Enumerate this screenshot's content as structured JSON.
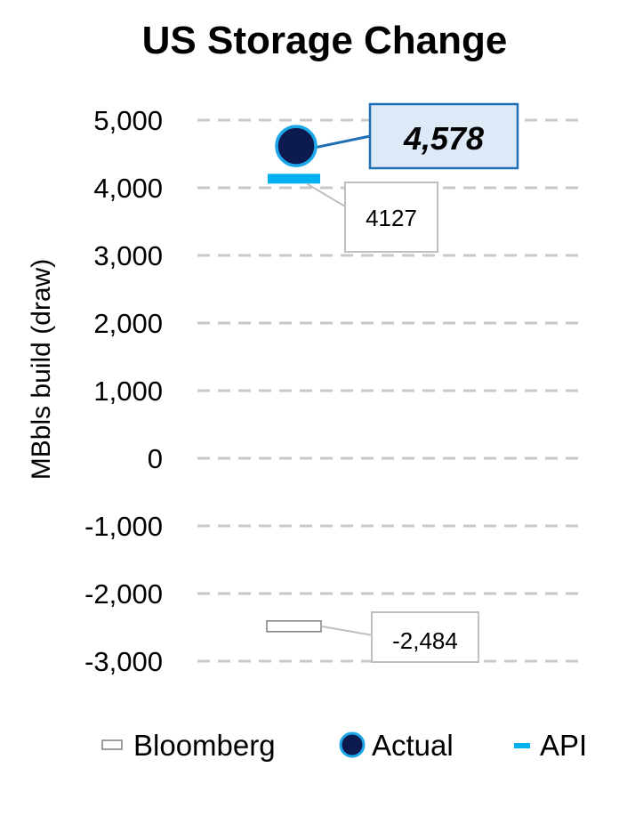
{
  "chart_data": {
    "type": "scatter",
    "title": "US Storage Change",
    "ylabel": "MBbls build (draw)",
    "xlabel": "",
    "ylim": [
      -3000,
      5000
    ],
    "yticks": [
      5000,
      4000,
      3000,
      2000,
      1000,
      0,
      -1000,
      -2000,
      -3000
    ],
    "ytick_labels": [
      "5,000",
      "4,000",
      "3,000",
      "2,000",
      "1,000",
      "0",
      "-1,000",
      "-2,000",
      "-3,000"
    ],
    "grid": "horizontal dashed",
    "legend_position": "bottom",
    "series": [
      {
        "name": "Bloomberg",
        "marker": "hollow-bar",
        "color": "#ffffff",
        "value": -2484,
        "label": "-2,484"
      },
      {
        "name": "Actual",
        "marker": "circle",
        "color": "#0d1a4f",
        "value": 4578,
        "label": "4,578"
      },
      {
        "name": "API",
        "marker": "dash",
        "color": "#00b0f0",
        "value": 4127,
        "label": "4127"
      }
    ]
  }
}
